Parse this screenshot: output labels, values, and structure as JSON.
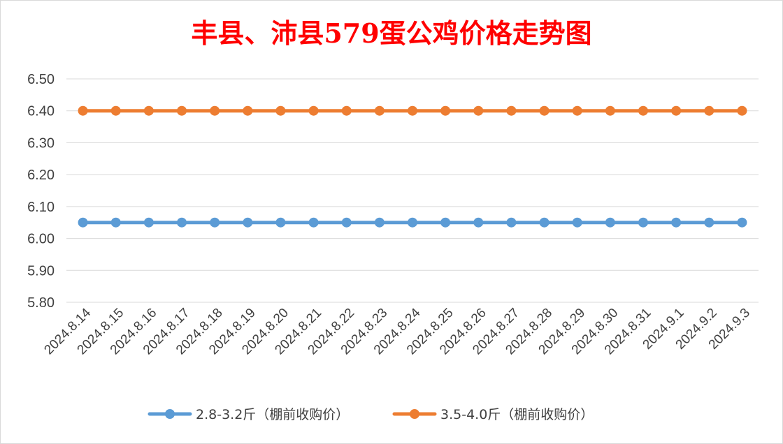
{
  "chart_data": {
    "type": "line",
    "title": "丰县、沛县579蛋公鸡价格走势图",
    "xlabel": "",
    "ylabel": "",
    "categories": [
      "2024.8.14",
      "2024.8.15",
      "2024.8.16",
      "2024.8.17",
      "2024.8.18",
      "2024.8.19",
      "2024.8.20",
      "2024.8.21",
      "2024.8.22",
      "2024.8.23",
      "2024.8.24",
      "2024.8.25",
      "2024.8.26",
      "2024.8.27",
      "2024.8.28",
      "2024.8.29",
      "2024.8.30",
      "2024.8.31",
      "2024.9.1",
      "2024.9.2",
      "2024.9.3"
    ],
    "ylim": [
      5.8,
      6.5
    ],
    "yticks": [
      "5.80",
      "5.90",
      "6.00",
      "6.10",
      "6.20",
      "6.30",
      "6.40",
      "6.50"
    ],
    "grid": true,
    "legend_position": "bottom",
    "series": [
      {
        "name": "2.8-3.2斤（棚前收购价）",
        "color": "#5b9bd5",
        "values": [
          6.05,
          6.05,
          6.05,
          6.05,
          6.05,
          6.05,
          6.05,
          6.05,
          6.05,
          6.05,
          6.05,
          6.05,
          6.05,
          6.05,
          6.05,
          6.05,
          6.05,
          6.05,
          6.05,
          6.05,
          6.05
        ]
      },
      {
        "name": "3.5-4.0斤（棚前收购价）",
        "color": "#ed7d31",
        "values": [
          6.4,
          6.4,
          6.4,
          6.4,
          6.4,
          6.4,
          6.4,
          6.4,
          6.4,
          6.4,
          6.4,
          6.4,
          6.4,
          6.4,
          6.4,
          6.4,
          6.4,
          6.4,
          6.4,
          6.4,
          6.4
        ]
      }
    ]
  }
}
